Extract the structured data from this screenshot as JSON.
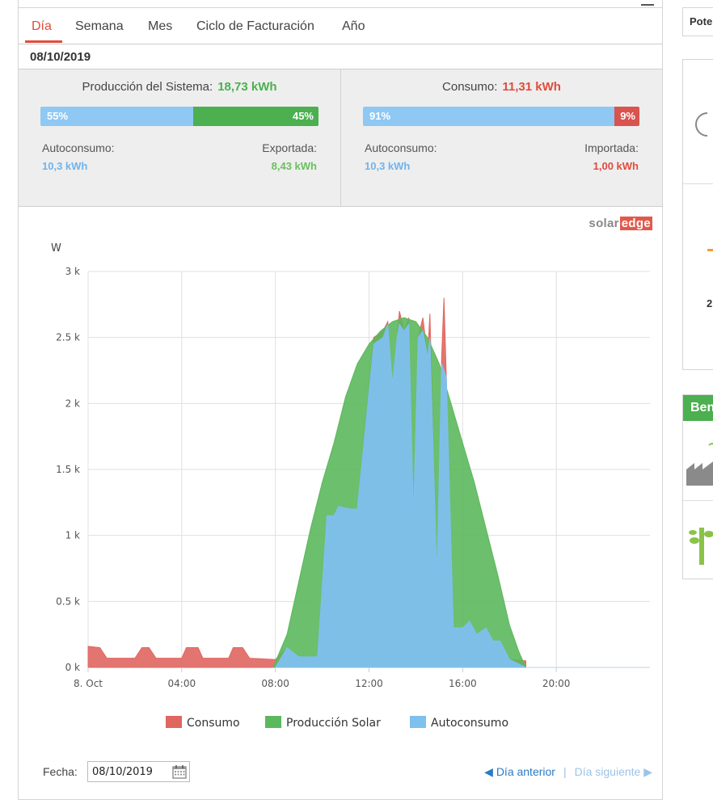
{
  "tabs": [
    {
      "label": "Día",
      "active": true
    },
    {
      "label": "Semana",
      "active": false
    },
    {
      "label": "Mes",
      "active": false
    },
    {
      "label": "Ciclo de Facturación",
      "active": false
    },
    {
      "label": "Año",
      "active": false
    }
  ],
  "date_header": "08/10/2019",
  "production": {
    "title": "Producción del Sistema:",
    "value": "18,73 kWh",
    "self_pct_label": "55%",
    "export_pct_label": "45%",
    "self_fraction": 0.55,
    "self_label": "Autoconsumo:",
    "self_value": "10,3 kWh",
    "export_label": "Exportada:",
    "export_value": "8,43 kWh"
  },
  "consumption": {
    "title": "Consumo:",
    "value": "11,31 kWh",
    "self_pct_label": "91%",
    "import_pct_label": "9%",
    "self_fraction": 0.91,
    "self_label": "Autoconsumo:",
    "self_value": "10,3 kWh",
    "import_label": "Importada:",
    "import_value": "1,00 kWh"
  },
  "brand": {
    "solar": "solar",
    "edge": "edge"
  },
  "colors": {
    "accent_red": "#e04c3c",
    "consumo": "#e06660",
    "produccion": "#5cb85c",
    "autoconsumo": "#7ec0ee",
    "green_text": "#4caf50",
    "blue_text": "#6fb4ec"
  },
  "chart_data": {
    "type": "area",
    "ylabel": "W",
    "x_tick_labels": [
      "8. Oct",
      "04:00",
      "08:00",
      "12:00",
      "16:00",
      "20:00"
    ],
    "y_tick_labels": [
      "0 k",
      "0.5 k",
      "1 k",
      "1.5 k",
      "2 k",
      "2.5 k",
      "3 k"
    ],
    "xlim_hours": [
      0,
      24
    ],
    "ylim": [
      0,
      3000
    ],
    "grid": true,
    "legend_position": "bottom",
    "series": [
      {
        "name": "Consumo",
        "color": "#e06660",
        "points": [
          [
            0,
            160
          ],
          [
            0.5,
            150
          ],
          [
            0.8,
            70
          ],
          [
            2,
            70
          ],
          [
            2.3,
            150
          ],
          [
            2.6,
            150
          ],
          [
            2.9,
            70
          ],
          [
            4,
            70
          ],
          [
            4.2,
            150
          ],
          [
            4.7,
            150
          ],
          [
            4.9,
            70
          ],
          [
            6,
            70
          ],
          [
            6.2,
            150
          ],
          [
            6.6,
            150
          ],
          [
            6.9,
            70
          ],
          [
            8,
            60
          ],
          [
            8.5,
            150
          ],
          [
            9,
            80
          ],
          [
            9.8,
            80
          ],
          [
            10.2,
            1150
          ],
          [
            10.5,
            1150
          ],
          [
            10.7,
            1220
          ],
          [
            11.2,
            1200
          ],
          [
            11.5,
            1200
          ],
          [
            12.2,
            2500
          ],
          [
            12.6,
            2550
          ],
          [
            12.8,
            2620
          ],
          [
            13,
            2150
          ],
          [
            13.2,
            2500
          ],
          [
            13.3,
            2700
          ],
          [
            13.5,
            2550
          ],
          [
            13.7,
            2650
          ],
          [
            13.9,
            1150
          ],
          [
            14.1,
            2500
          ],
          [
            14.3,
            2650
          ],
          [
            14.5,
            2350
          ],
          [
            14.6,
            2680
          ],
          [
            14.9,
            700
          ],
          [
            15.1,
            2350
          ],
          [
            15.2,
            2800
          ],
          [
            15.3,
            2200
          ],
          [
            15.6,
            300
          ],
          [
            16,
            300
          ],
          [
            16.3,
            350
          ],
          [
            16.6,
            250
          ],
          [
            17,
            300
          ],
          [
            17.3,
            200
          ],
          [
            17.6,
            200
          ],
          [
            18,
            60
          ],
          [
            18.7,
            50
          ]
        ]
      },
      {
        "name": "Producción Solar",
        "color": "#5cb85c",
        "points": [
          [
            7.9,
            0
          ],
          [
            8.5,
            250
          ],
          [
            9,
            650
          ],
          [
            9.5,
            1050
          ],
          [
            10,
            1400
          ],
          [
            10.5,
            1700
          ],
          [
            11,
            2050
          ],
          [
            11.5,
            2300
          ],
          [
            12,
            2450
          ],
          [
            12.5,
            2550
          ],
          [
            13,
            2620
          ],
          [
            13.5,
            2650
          ],
          [
            14,
            2620
          ],
          [
            14.5,
            2500
          ],
          [
            15,
            2300
          ],
          [
            15.5,
            2000
          ],
          [
            16,
            1700
          ],
          [
            16.5,
            1400
          ],
          [
            17,
            1050
          ],
          [
            17.5,
            700
          ],
          [
            18,
            320
          ],
          [
            18.4,
            120
          ],
          [
            18.7,
            0
          ]
        ]
      },
      {
        "name": "Autoconsumo",
        "color": "#7ec0ee",
        "points": [
          [
            8,
            0
          ],
          [
            8.5,
            150
          ],
          [
            9,
            80
          ],
          [
            9.8,
            80
          ],
          [
            10.2,
            1150
          ],
          [
            10.5,
            1150
          ],
          [
            10.7,
            1220
          ],
          [
            11.2,
            1200
          ],
          [
            11.5,
            1200
          ],
          [
            12.2,
            2450
          ],
          [
            12.6,
            2500
          ],
          [
            12.8,
            2600
          ],
          [
            13,
            2150
          ],
          [
            13.2,
            2500
          ],
          [
            13.3,
            2600
          ],
          [
            13.5,
            2550
          ],
          [
            13.7,
            2600
          ],
          [
            13.9,
            1150
          ],
          [
            14.1,
            2500
          ],
          [
            14.3,
            2550
          ],
          [
            14.5,
            2350
          ],
          [
            14.6,
            2500
          ],
          [
            14.9,
            700
          ],
          [
            15.1,
            2300
          ],
          [
            15.3,
            2200
          ],
          [
            15.6,
            300
          ],
          [
            16,
            300
          ],
          [
            16.3,
            350
          ],
          [
            16.6,
            250
          ],
          [
            17,
            300
          ],
          [
            17.3,
            200
          ],
          [
            17.6,
            200
          ],
          [
            18,
            60
          ],
          [
            18.7,
            0
          ]
        ]
      }
    ]
  },
  "footer": {
    "fecha_label": "Fecha:",
    "fecha_value": "08/10/2019",
    "prev_label": "Día anterior",
    "separator": "|",
    "next_label": "Día siguiente"
  },
  "sidebar": {
    "pote_label": "Pote",
    "ben_label": "Ben",
    "value_fragment": "2"
  }
}
